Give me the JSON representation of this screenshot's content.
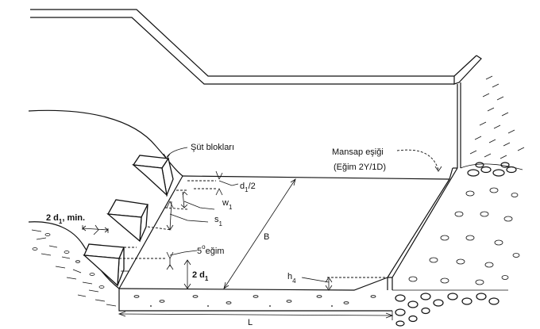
{
  "labels": {
    "chute_blocks": "Şüt blokları",
    "end_sill_line1": "Mansap eşiği",
    "end_sill_line2": "(Eğim 2Y/1D)",
    "d1_half": "d",
    "d1_half_sub": "1",
    "d1_half_tail": "/2",
    "w1": "w",
    "w1_sub": "1",
    "s1": "s",
    "s1_sub": "1",
    "slope_deg": "5",
    "slope_sup": "o",
    "slope_tail": "eğim",
    "two_d1_min_a": "2 d",
    "two_d1_min_sub": "1",
    "two_d1_min_b": ", min.",
    "two_d1_a": "2 d",
    "two_d1_sub": "1",
    "width_B": "B",
    "h4": "h",
    "h4_sub": "4",
    "length_L": "L"
  }
}
